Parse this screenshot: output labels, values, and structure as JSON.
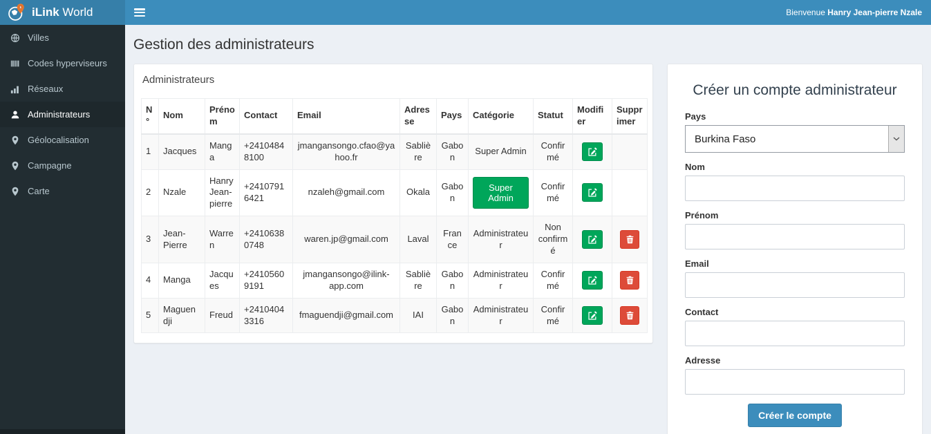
{
  "brand": {
    "name_bold": "iLink",
    "name_rest": " World"
  },
  "navbar": {
    "welcome_prefix": "Bienvenue ",
    "welcome_user": "Hanry Jean-pierre Nzale"
  },
  "sidebar": {
    "items": [
      {
        "label": "Villes",
        "icon": "globe-icon",
        "active": false
      },
      {
        "label": "Codes hyperviseurs",
        "icon": "barcode-icon",
        "active": false
      },
      {
        "label": "Réseaux",
        "icon": "chart-bars-icon",
        "active": false
      },
      {
        "label": "Administrateurs",
        "icon": "user-icon",
        "active": true
      },
      {
        "label": "Géolocalisation",
        "icon": "map-marker-icon",
        "active": false
      },
      {
        "label": "Campagne",
        "icon": "map-marker-icon",
        "active": false
      },
      {
        "label": "Carte",
        "icon": "map-marker-icon",
        "active": false
      }
    ]
  },
  "page": {
    "title": "Gestion des administrateurs"
  },
  "admin_panel": {
    "title": "Administrateurs"
  },
  "table": {
    "headers": [
      "N°",
      "Nom",
      "Prénom",
      "Contact",
      "Email",
      "Adresse",
      "Pays",
      "Catégorie",
      "Statut",
      "Modifier",
      "Supprimer"
    ],
    "rows": [
      {
        "num": "1",
        "nom": "Jacques",
        "prenom": "Manga",
        "contact": "+24104848100",
        "email": "jmangansongo.cfao@yahoo.fr",
        "adresse": "Sablière",
        "pays": "Gabon",
        "categorie": "Super Admin",
        "categorie_as_button": false,
        "statut": "Confirmé",
        "has_delete": false
      },
      {
        "num": "2",
        "nom": "Nzale",
        "prenom": "Hanry Jean-pierre",
        "contact": "+24107916421",
        "email": "nzaleh@gmail.com",
        "adresse": "Okala",
        "pays": "Gabon",
        "categorie": "Super Admin",
        "categorie_as_button": true,
        "statut": "Confirmé",
        "has_delete": false
      },
      {
        "num": "3",
        "nom": "Jean-Pierre",
        "prenom": "Warren",
        "contact": "+24106380748",
        "email": "waren.jp@gmail.com",
        "adresse": "Laval",
        "pays": "France",
        "categorie": "Administrateur",
        "categorie_as_button": false,
        "statut": "Non confirmé",
        "has_delete": true
      },
      {
        "num": "4",
        "nom": "Manga",
        "prenom": "Jacques",
        "contact": "+24105609191",
        "email": "jmangansongo@ilink-app.com",
        "adresse": "Sablière",
        "pays": "Gabon",
        "categorie": "Administrateur",
        "categorie_as_button": false,
        "statut": "Confirmé",
        "has_delete": true
      },
      {
        "num": "5",
        "nom": "Maguendji",
        "prenom": "Freud",
        "contact": "+24104043316",
        "email": "fmaguendji@gmail.com",
        "adresse": "IAI",
        "pays": "Gabon",
        "categorie": "Administrateur",
        "categorie_as_button": false,
        "statut": "Confirmé",
        "has_delete": true
      }
    ],
    "edit_icon": "edit-icon",
    "delete_icon": "trash-icon"
  },
  "form": {
    "title": "Créer un compte administrateur",
    "fields": [
      {
        "label": "Pays",
        "type": "select",
        "value": "Burkina Faso"
      },
      {
        "label": "Nom",
        "type": "text",
        "value": ""
      },
      {
        "label": "Prénom",
        "type": "text",
        "value": ""
      },
      {
        "label": "Email",
        "type": "text",
        "value": ""
      },
      {
        "label": "Contact",
        "type": "text",
        "value": ""
      },
      {
        "label": "Adresse",
        "type": "text",
        "value": ""
      }
    ],
    "submit_label": "Créer le compte"
  },
  "colors": {
    "navbar_blue": "#3c8dbc",
    "logo_bg": "#367fa9",
    "sidebar_bg": "#222d32",
    "sidebar_active_bg": "#1e282c",
    "green": "#00a65a",
    "red": "#dd4b39",
    "content_bg": "#ecf0f5",
    "pin_orange": "#e8772e"
  }
}
